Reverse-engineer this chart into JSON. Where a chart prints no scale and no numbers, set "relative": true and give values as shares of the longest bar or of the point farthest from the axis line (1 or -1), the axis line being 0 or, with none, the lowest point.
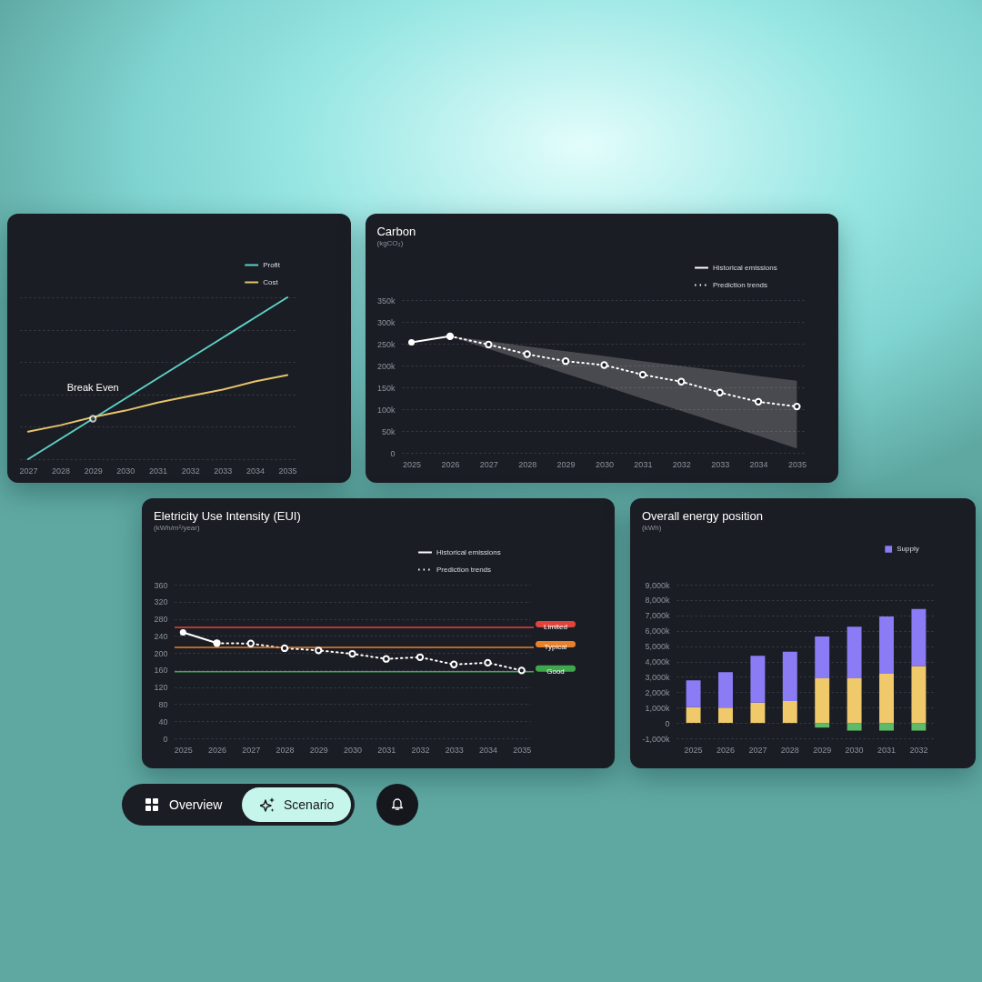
{
  "chart_data": [
    {
      "type": "line",
      "categories": [
        "2027",
        "2028",
        "2029",
        "2030",
        "2031",
        "2032",
        "2033",
        "2034",
        "2035"
      ],
      "relative": true,
      "grid": "y",
      "legend": "top right",
      "marker": "none",
      "series": [
        {
          "name": "Profit",
          "color": "#5ed1c8",
          "values": [
            0,
            0.125,
            0.25,
            0.375,
            0.5,
            0.625,
            0.75,
            0.875,
            1
          ]
        },
        {
          "name": "Cost",
          "color": "#e5c46a",
          "values": [
            0.17,
            0.21,
            0.26,
            0.3,
            0.35,
            0.39,
            0.43,
            0.48,
            0.52
          ]
        }
      ],
      "annotations": [
        {
          "text": "Break Even",
          "x": "2029",
          "y": 0.25
        }
      ]
    },
    {
      "type": "line",
      "title": "Carbon",
      "subtitle": "(kgCO₂)",
      "categories": [
        "2025",
        "2026",
        "2027",
        "2028",
        "2029",
        "2030",
        "2031",
        "2032",
        "2033",
        "2034",
        "2035"
      ],
      "ylim": [
        0,
        350000
      ],
      "yticks": [
        0,
        {
          "value": 50000,
          "label": "50k"
        },
        {
          "value": 100000,
          "label": "100k"
        },
        {
          "value": 150000,
          "label": "150k"
        },
        {
          "value": 200000,
          "label": "200k"
        },
        {
          "value": 250000,
          "label": "250k"
        },
        {
          "value": 300000,
          "label": "300k"
        },
        {
          "value": 350000,
          "label": "350k"
        }
      ],
      "grid": "y",
      "legend": "top right",
      "marker": "circle",
      "series": [
        {
          "name": "Historical emissions",
          "color": "#ffffff",
          "line_style": "solid",
          "values": [
            253000,
            267000,
            null,
            null,
            null,
            null,
            null,
            null,
            null,
            null,
            null
          ]
        },
        {
          "name": "Prediction trends",
          "color": "#ffffff",
          "line_style": "dotted",
          "values": [
            null,
            267000,
            248000,
            226000,
            210000,
            201000,
            179000,
            163000,
            138000,
            117000,
            106000
          ],
          "lower": [
            null,
            267000,
            238000,
            210000,
            181000,
            153000,
            124000,
            96000,
            67000,
            39000,
            10000
          ],
          "upper": [
            null,
            267000,
            256000,
            244000,
            233000,
            222000,
            210000,
            199000,
            188000,
            176000,
            165000
          ]
        }
      ]
    },
    {
      "type": "line",
      "title": "Eletricity Use Intensity (EUI)",
      "subtitle": "(kWh/m²/year)",
      "categories": [
        "2025",
        "2026",
        "2027",
        "2028",
        "2029",
        "2030",
        "2031",
        "2032",
        "2033",
        "2034",
        "2035"
      ],
      "ylim": [
        0,
        360
      ],
      "yticks": [
        0,
        40,
        80,
        120,
        160,
        200,
        240,
        280,
        320,
        360
      ],
      "grid": "y",
      "legend": "top right",
      "marker": "circle",
      "series": [
        {
          "name": "Historical emissions",
          "color": "#ffffff",
          "line_style": "solid",
          "values": [
            248,
            223,
            null,
            null,
            null,
            null,
            null,
            null,
            null,
            null,
            null
          ]
        },
        {
          "name": "Prediction trends",
          "color": "#ffffff",
          "line_style": "dotted",
          "values": [
            null,
            223,
            222,
            211,
            206,
            198,
            186,
            190,
            173,
            177,
            159
          ]
        }
      ],
      "ref_lines": [
        {
          "axis": "y",
          "value": 260,
          "label": "Limited",
          "color": "#e0453d"
        },
        {
          "axis": "y",
          "value": 213,
          "label": "Typical",
          "color": "#e8802c"
        },
        {
          "axis": "y",
          "value": 156,
          "label": "Good",
          "color": "#3fa84c"
        }
      ]
    },
    {
      "type": "bar",
      "title": "Overall energy position",
      "subtitle": "(kWh)",
      "categories": [
        "2025",
        "2026",
        "2027",
        "2028",
        "2029",
        "2030",
        "2031",
        "2032"
      ],
      "stacked": true,
      "ylim": [
        -1000000,
        9000000
      ],
      "yticks": [
        {
          "value": -1000000,
          "label": "-1,000k"
        },
        0,
        {
          "value": 1000000,
          "label": "1,000k"
        },
        {
          "value": 2000000,
          "label": "2,000k"
        },
        {
          "value": 3000000,
          "label": "3,000k"
        },
        {
          "value": 4000000,
          "label": "4,000k"
        },
        {
          "value": 5000000,
          "label": "5,000k"
        },
        {
          "value": 6000000,
          "label": "6,000k"
        },
        {
          "value": 7000000,
          "label": "7,000k"
        },
        {
          "value": 8000000,
          "label": "8,000k"
        },
        {
          "value": 9000000,
          "label": "9,000k"
        }
      ],
      "grid": "y",
      "legend": "top right",
      "series": [
        {
          "color": "#f0c96b",
          "values": [
            1030000,
            1000000,
            1320000,
            1430000,
            2900000,
            2900000,
            3200000,
            3700000
          ]
        },
        {
          "name": "Supply",
          "color": "#8b7cf6",
          "values": [
            1740000,
            2300000,
            3050000,
            3200000,
            2730000,
            3370000,
            3730000,
            3720000
          ]
        },
        {
          "color": "#5dbb6a",
          "values": [
            null,
            null,
            null,
            null,
            -300000,
            -500000,
            -500000,
            -500000
          ]
        }
      ]
    },
    {
      "type": "other",
      "annotations": [
        "Overview",
        "Scenario"
      ]
    }
  ]
}
